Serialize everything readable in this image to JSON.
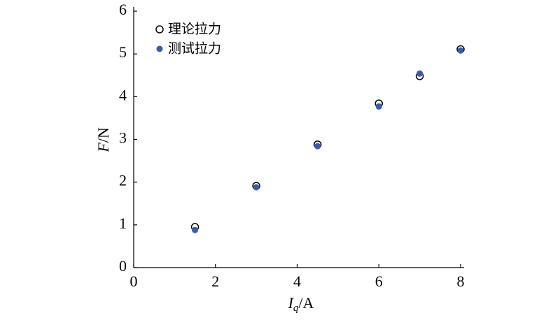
{
  "chart_data": {
    "type": "scatter",
    "xlabel": {
      "symbol": "I",
      "subscript": "q",
      "unit": "/A"
    },
    "ylabel": {
      "symbol": "F",
      "unit": "/N"
    },
    "series": [
      {
        "name": "理论拉力",
        "color": "#000000",
        "marker": "open",
        "x": [
          1.5,
          3,
          4.5,
          6,
          7,
          8
        ],
        "values": [
          0.95,
          1.91,
          2.88,
          3.84,
          4.48,
          5.11
        ]
      },
      {
        "name": "测试拉力",
        "color": "#3a5ba8",
        "marker": "filled",
        "x": [
          1.5,
          3,
          4.5,
          6,
          7,
          8
        ],
        "values": [
          0.88,
          1.88,
          2.84,
          3.77,
          4.54,
          5.08
        ]
      }
    ],
    "xlim": [
      0,
      8
    ],
    "xticks": [
      0,
      2,
      4,
      6,
      8
    ],
    "ylim": [
      0,
      6
    ],
    "yticks": [
      0,
      1,
      2,
      3,
      4,
      5,
      6
    ],
    "legend": "upper-left"
  }
}
